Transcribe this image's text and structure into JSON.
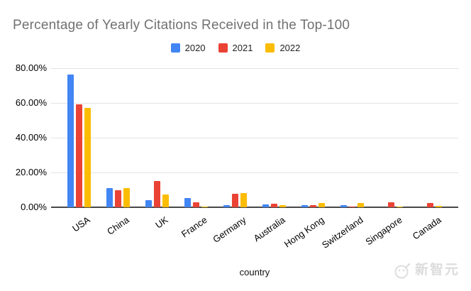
{
  "chart_data": {
    "type": "bar",
    "title": "Percentage of Yearly Citations Received in the Top-100",
    "categories": [
      "USA",
      "China",
      "UK",
      "France",
      "Germany",
      "Australia",
      "Hong Kong",
      "Switzerland",
      "Singapore",
      "Canada"
    ],
    "series": [
      {
        "name": "2020",
        "color": "#4285F4",
        "values": [
          76.5,
          11.0,
          4.1,
          5.2,
          1.4,
          1.6,
          1.2,
          1.4,
          0,
          0
        ]
      },
      {
        "name": "2021",
        "color": "#EA4335",
        "values": [
          59.0,
          9.7,
          15.2,
          2.9,
          7.6,
          2.0,
          1.4,
          0.6,
          3.0,
          2.4
        ]
      },
      {
        "name": "2022",
        "color": "#FBBC04",
        "values": [
          57.3,
          11.0,
          7.3,
          0.4,
          8.1,
          1.2,
          2.3,
          2.4,
          0.6,
          0.9
        ]
      }
    ],
    "xlabel": "country",
    "ylabel": "",
    "ylim": [
      0,
      80
    ],
    "yticks": [
      "80.00%",
      "60.00%",
      "40.00%",
      "20.00%",
      "0.00%"
    ],
    "ytick_values": [
      80,
      60,
      40,
      20,
      0
    ],
    "grid": true,
    "legend_position": "top"
  },
  "watermark": {
    "text": "新智元",
    "icon": "robot-logo-icon"
  }
}
